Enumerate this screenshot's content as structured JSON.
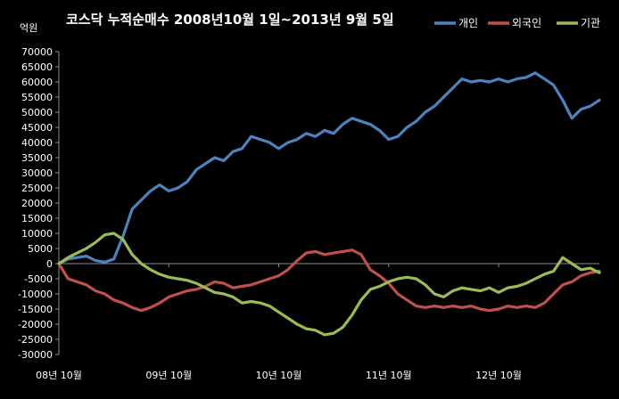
{
  "chart_data": {
    "type": "line",
    "title": "코스닥 누적순매수 2008년10월 1일~2013년 9월 5일",
    "ylabel": "억원",
    "ylim": [
      -30000,
      70000
    ],
    "ystep": 5000,
    "yticks": [
      "70000",
      "65000",
      "60000",
      "55000",
      "50000",
      "45000",
      "40000",
      "35000",
      "30000",
      "25000",
      "20000",
      "15000",
      "10000",
      "5000",
      "0",
      "-5000",
      "-10000",
      "-15000",
      "-20000",
      "-25000",
      "-30000"
    ],
    "xlim": [
      0,
      59
    ],
    "xticks": [
      {
        "x": 0,
        "label": "08년 10월"
      },
      {
        "x": 12,
        "label": "09년 10월"
      },
      {
        "x": 24,
        "label": "10년 10월"
      },
      {
        "x": 36,
        "label": "11년 10월"
      },
      {
        "x": 48,
        "label": "12년 10월"
      }
    ],
    "legend": "top-right",
    "grid": false,
    "series": [
      {
        "name": "개인",
        "color": "#4F81BD",
        "points": [
          [
            0,
            0
          ],
          [
            1,
            1500
          ],
          [
            2,
            2000
          ],
          [
            3,
            2500
          ],
          [
            4,
            1000
          ],
          [
            5,
            500
          ],
          [
            6,
            1500
          ],
          [
            7,
            9000
          ],
          [
            8,
            18000
          ],
          [
            9,
            21000
          ],
          [
            10,
            24000
          ],
          [
            11,
            26000
          ],
          [
            12,
            24000
          ],
          [
            13,
            25000
          ],
          [
            14,
            27000
          ],
          [
            15,
            31000
          ],
          [
            16,
            33000
          ],
          [
            17,
            35000
          ],
          [
            18,
            34000
          ],
          [
            19,
            37000
          ],
          [
            20,
            38000
          ],
          [
            21,
            42000
          ],
          [
            22,
            41000
          ],
          [
            23,
            40000
          ],
          [
            24,
            38000
          ],
          [
            25,
            40000
          ],
          [
            26,
            41000
          ],
          [
            27,
            43000
          ],
          [
            28,
            42000
          ],
          [
            29,
            44000
          ],
          [
            30,
            43000
          ],
          [
            31,
            46000
          ],
          [
            32,
            48000
          ],
          [
            33,
            47000
          ],
          [
            34,
            46000
          ],
          [
            35,
            44000
          ],
          [
            36,
            41000
          ],
          [
            37,
            42000
          ],
          [
            38,
            45000
          ],
          [
            39,
            47000
          ],
          [
            40,
            50000
          ],
          [
            41,
            52000
          ],
          [
            42,
            55000
          ],
          [
            43,
            58000
          ],
          [
            44,
            61000
          ],
          [
            45,
            60000
          ],
          [
            46,
            60500
          ],
          [
            47,
            60000
          ],
          [
            48,
            61000
          ],
          [
            49,
            60000
          ],
          [
            50,
            61000
          ],
          [
            51,
            61500
          ],
          [
            52,
            63000
          ],
          [
            53,
            61000
          ],
          [
            54,
            59000
          ],
          [
            55,
            54000
          ],
          [
            56,
            48000
          ],
          [
            57,
            51000
          ],
          [
            58,
            52000
          ],
          [
            59,
            54000
          ]
        ]
      },
      {
        "name": "외국인",
        "color": "#C0504D",
        "points": [
          [
            0,
            0
          ],
          [
            1,
            -5000
          ],
          [
            2,
            -6000
          ],
          [
            3,
            -7000
          ],
          [
            4,
            -9000
          ],
          [
            5,
            -10000
          ],
          [
            6,
            -12000
          ],
          [
            7,
            -13000
          ],
          [
            8,
            -14500
          ],
          [
            9,
            -15500
          ],
          [
            10,
            -14500
          ],
          [
            11,
            -13000
          ],
          [
            12,
            -11000
          ],
          [
            13,
            -10000
          ],
          [
            14,
            -9000
          ],
          [
            15,
            -8500
          ],
          [
            16,
            -7500
          ],
          [
            17,
            -6000
          ],
          [
            18,
            -6500
          ],
          [
            19,
            -8000
          ],
          [
            20,
            -7500
          ],
          [
            21,
            -7000
          ],
          [
            22,
            -6000
          ],
          [
            23,
            -5000
          ],
          [
            24,
            -4000
          ],
          [
            25,
            -2000
          ],
          [
            26,
            1000
          ],
          [
            27,
            3500
          ],
          [
            28,
            4000
          ],
          [
            29,
            3000
          ],
          [
            30,
            3500
          ],
          [
            31,
            4000
          ],
          [
            32,
            4500
          ],
          [
            33,
            3000
          ],
          [
            34,
            -2000
          ],
          [
            35,
            -4000
          ],
          [
            36,
            -6500
          ],
          [
            37,
            -10000
          ],
          [
            38,
            -12000
          ],
          [
            39,
            -14000
          ],
          [
            40,
            -14500
          ],
          [
            41,
            -14000
          ],
          [
            42,
            -14500
          ],
          [
            43,
            -14000
          ],
          [
            44,
            -14500
          ],
          [
            45,
            -14000
          ],
          [
            46,
            -15000
          ],
          [
            47,
            -15500
          ],
          [
            48,
            -15000
          ],
          [
            49,
            -14000
          ],
          [
            50,
            -14500
          ],
          [
            51,
            -14000
          ],
          [
            52,
            -14500
          ],
          [
            53,
            -13000
          ],
          [
            54,
            -10000
          ],
          [
            55,
            -7000
          ],
          [
            56,
            -6000
          ],
          [
            57,
            -4000
          ],
          [
            58,
            -3000
          ],
          [
            59,
            -2500
          ]
        ]
      },
      {
        "name": "기관",
        "color": "#9BBB59",
        "points": [
          [
            0,
            0
          ],
          [
            1,
            2000
          ],
          [
            2,
            3500
          ],
          [
            3,
            5000
          ],
          [
            4,
            7000
          ],
          [
            5,
            9500
          ],
          [
            6,
            10000
          ],
          [
            7,
            8000
          ],
          [
            8,
            3000
          ],
          [
            9,
            0
          ],
          [
            10,
            -2000
          ],
          [
            11,
            -3500
          ],
          [
            12,
            -4500
          ],
          [
            13,
            -5000
          ],
          [
            14,
            -5500
          ],
          [
            15,
            -6500
          ],
          [
            16,
            -8000
          ],
          [
            17,
            -9500
          ],
          [
            18,
            -10000
          ],
          [
            19,
            -11000
          ],
          [
            20,
            -13000
          ],
          [
            21,
            -12500
          ],
          [
            22,
            -13000
          ],
          [
            23,
            -14000
          ],
          [
            24,
            -16000
          ],
          [
            25,
            -18000
          ],
          [
            26,
            -20000
          ],
          [
            27,
            -21500
          ],
          [
            28,
            -22000
          ],
          [
            29,
            -23500
          ],
          [
            30,
            -23000
          ],
          [
            31,
            -21000
          ],
          [
            32,
            -17000
          ],
          [
            33,
            -12000
          ],
          [
            34,
            -8500
          ],
          [
            35,
            -7500
          ],
          [
            36,
            -6000
          ],
          [
            37,
            -5000
          ],
          [
            38,
            -4500
          ],
          [
            39,
            -5000
          ],
          [
            40,
            -7000
          ],
          [
            41,
            -10000
          ],
          [
            42,
            -11000
          ],
          [
            43,
            -9000
          ],
          [
            44,
            -8000
          ],
          [
            45,
            -8500
          ],
          [
            46,
            -9000
          ],
          [
            47,
            -8000
          ],
          [
            48,
            -9500
          ],
          [
            49,
            -8000
          ],
          [
            50,
            -7500
          ],
          [
            51,
            -6500
          ],
          [
            52,
            -5000
          ],
          [
            53,
            -3500
          ],
          [
            54,
            -2500
          ],
          [
            55,
            2000
          ],
          [
            56,
            0
          ],
          [
            57,
            -2000
          ],
          [
            58,
            -1500
          ],
          [
            59,
            -3000
          ]
        ]
      }
    ]
  }
}
